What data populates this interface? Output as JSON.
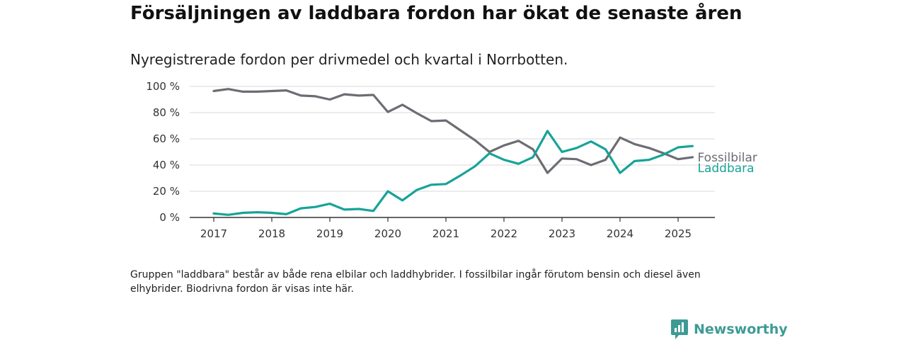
{
  "colors": {
    "fossil": "#6e6c73",
    "laddbara": "#17a398",
    "grid": "#d9d9d9",
    "axis": "#333333",
    "brand": "#3d9b94"
  },
  "brand": {
    "name": "Newsworthy",
    "icon": "newsworthy-logo-icon"
  },
  "chart_data": {
    "type": "line",
    "title": "Försäljningen av laddbara fordon har ökat de senaste åren",
    "subtitle": "Nyregistrerade fordon per drivmedel och kvartal i Norrbotten.",
    "xlabel": "",
    "ylabel": "",
    "x": [
      "2017-Q1",
      "2017-Q2",
      "2017-Q3",
      "2017-Q4",
      "2018-Q1",
      "2018-Q2",
      "2018-Q3",
      "2018-Q4",
      "2019-Q1",
      "2019-Q2",
      "2019-Q3",
      "2019-Q4",
      "2020-Q1",
      "2020-Q2",
      "2020-Q3",
      "2020-Q4",
      "2021-Q1",
      "2021-Q2",
      "2021-Q3",
      "2021-Q4",
      "2022-Q1",
      "2022-Q2",
      "2022-Q3",
      "2022-Q4",
      "2023-Q1",
      "2023-Q2",
      "2023-Q3",
      "2023-Q4",
      "2024-Q1",
      "2024-Q2",
      "2024-Q3",
      "2024-Q4",
      "2025-Q1",
      "2025-Q2"
    ],
    "x_ticks": [
      "2017",
      "2018",
      "2019",
      "2020",
      "2021",
      "2022",
      "2023",
      "2024",
      "2025"
    ],
    "y_ticks": [
      "0 %",
      "20 %",
      "40 %",
      "60 %",
      "80 %",
      "100 %"
    ],
    "ylim": [
      0,
      100
    ],
    "grid": true,
    "series": [
      {
        "name": "Fossilbilar",
        "values": [
          96.5,
          98,
          96,
          96,
          96.5,
          97,
          93,
          92.5,
          90,
          94,
          93,
          93.5,
          80.5,
          86,
          79.5,
          73.5,
          74,
          66.5,
          59,
          50,
          55,
          58.5,
          52,
          34,
          45,
          44.5,
          40,
          44,
          61,
          56,
          53,
          49,
          44.5,
          46
        ]
      },
      {
        "name": "Laddbara",
        "values": [
          3,
          2,
          3.5,
          4,
          3.5,
          2.5,
          7,
          8,
          10.5,
          6,
          6.5,
          5,
          20,
          13,
          21,
          25,
          25.5,
          32,
          39,
          49,
          44,
          41,
          46,
          66,
          50,
          53,
          58,
          52,
          34,
          43,
          44,
          48,
          53.5,
          54.5
        ]
      }
    ]
  },
  "footnote": "Gruppen \"laddbara\" består av både rena elbilar och laddhybrider. I fossilbilar ingår förutom bensin och diesel även elhybrider. Biodrivna fordon är visas inte här."
}
